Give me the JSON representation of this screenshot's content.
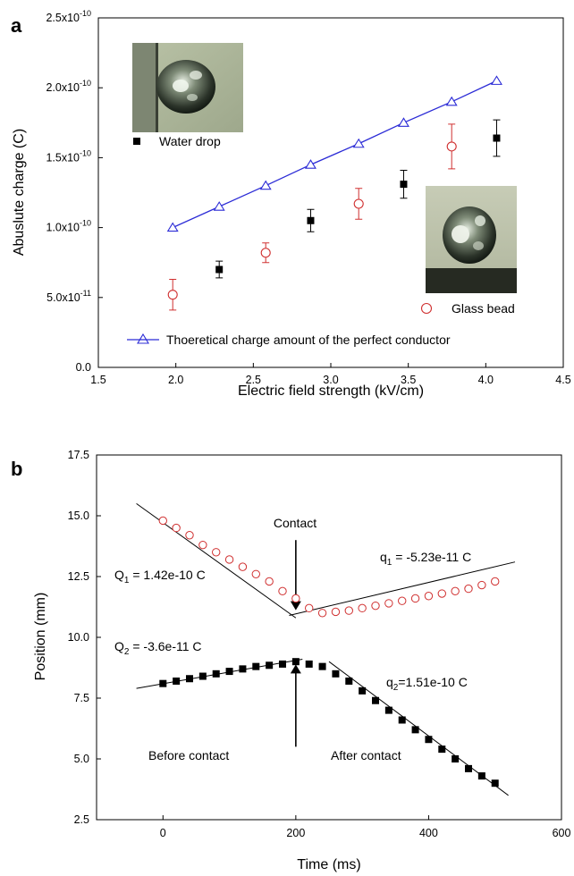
{
  "colors": {
    "theory_line": "#2b2bd6",
    "glass_marker": "#d03030",
    "water_marker": "#000000",
    "fit_line": "#000000"
  },
  "chart_data": [
    {
      "type": "scatter",
      "panel": "a",
      "xlabel": "Electric field strength (kV/cm)",
      "ylabel": "Abuslute charge (C)",
      "xlim": [
        1.5,
        4.5
      ],
      "ylim": [
        0,
        2.5e-10
      ],
      "x_ticks": [
        1.5,
        2.0,
        2.5,
        3.0,
        3.5,
        4.0,
        4.5
      ],
      "x_tick_labels": [
        "1.5",
        "2.0",
        "2.5",
        "3.0",
        "3.5",
        "4.0",
        "4.5"
      ],
      "y_ticks": [
        0,
        5e-11,
        1e-10,
        1.5e-10,
        2e-10,
        2.5e-10
      ],
      "y_tick_labels": [
        {
          "base": "0.0",
          "exp": ""
        },
        {
          "base": "5.0x10",
          "exp": "-11"
        },
        {
          "base": "1.0x10",
          "exp": "-10"
        },
        {
          "base": "1.5x10",
          "exp": "-10"
        },
        {
          "base": "2.0x10",
          "exp": "-10"
        },
        {
          "base": "2.5x10",
          "exp": "-10"
        }
      ],
      "grid": false,
      "series": [
        {
          "name": "Water drop",
          "marker": "filled-square",
          "x": [
            2.28,
            2.87,
            3.47,
            4.07
          ],
          "y": [
            7e-11,
            1.05e-10,
            1.31e-10,
            1.64e-10
          ],
          "yerr": [
            6e-12,
            8e-12,
            1e-11,
            1.3e-11
          ]
        },
        {
          "name": "Glass bead",
          "marker": "open-circle",
          "x": [
            1.98,
            2.58,
            3.18,
            3.78
          ],
          "y": [
            5.2e-11,
            8.2e-11,
            1.17e-10,
            1.58e-10
          ],
          "yerr": [
            1.1e-11,
            7e-12,
            1.1e-11,
            1.6e-11
          ]
        },
        {
          "name": "Thoeretical charge amount of the perfect conductor",
          "marker": "open-triangle-line",
          "x": [
            1.98,
            2.28,
            2.58,
            2.87,
            3.18,
            3.47,
            3.78,
            4.07
          ],
          "y": [
            1e-10,
            1.15e-10,
            1.3e-10,
            1.45e-10,
            1.6e-10,
            1.75e-10,
            1.9e-10,
            2.05e-10
          ]
        }
      ],
      "legend_placement": "inline labels; theory legend at bottom"
    },
    {
      "type": "scatter",
      "panel": "b",
      "xlabel": "Time (ms)",
      "ylabel": "Position (mm)",
      "xlim": [
        -100,
        600
      ],
      "ylim": [
        2.5,
        17.5
      ],
      "x_ticks": [
        0,
        200,
        400,
        600
      ],
      "x_tick_labels": [
        "0",
        "200",
        "400",
        "600"
      ],
      "y_ticks": [
        2.5,
        5.0,
        7.5,
        10.0,
        12.5,
        15.0,
        17.5
      ],
      "y_tick_labels": [
        "2.5",
        "5.0",
        "7.5",
        "10.0",
        "12.5",
        "15.0",
        "17.5"
      ],
      "grid": false,
      "series": [
        {
          "name": "glass bead",
          "marker": "open-circle",
          "x": [
            0,
            20,
            40,
            60,
            80,
            100,
            120,
            140,
            160,
            180,
            200,
            220,
            240,
            260,
            280,
            300,
            320,
            340,
            360,
            380,
            400,
            420,
            440,
            460,
            480,
            500
          ],
          "y": [
            14.8,
            14.5,
            14.2,
            13.8,
            13.5,
            13.2,
            12.9,
            12.6,
            12.3,
            11.9,
            11.6,
            11.2,
            11.0,
            11.05,
            11.1,
            11.2,
            11.3,
            11.4,
            11.5,
            11.6,
            11.7,
            11.8,
            11.9,
            12.0,
            12.15,
            12.3
          ]
        },
        {
          "name": "water drop",
          "marker": "filled-square",
          "x": [
            0,
            20,
            40,
            60,
            80,
            100,
            120,
            140,
            160,
            180,
            200,
            220,
            240,
            260,
            280,
            300,
            320,
            340,
            360,
            380,
            400,
            420,
            440,
            460,
            480,
            500
          ],
          "y": [
            8.1,
            8.2,
            8.3,
            8.4,
            8.5,
            8.6,
            8.7,
            8.8,
            8.85,
            8.9,
            9.0,
            8.9,
            8.8,
            8.5,
            8.2,
            7.8,
            7.4,
            7.0,
            6.6,
            6.2,
            5.8,
            5.4,
            5.0,
            4.6,
            4.3,
            4.0
          ]
        }
      ],
      "fit_lines": [
        {
          "x": [
            -40,
            200
          ],
          "y": [
            15.5,
            10.8
          ]
        },
        {
          "x": [
            190,
            530
          ],
          "y": [
            10.9,
            13.1
          ]
        },
        {
          "x": [
            -40,
            210
          ],
          "y": [
            7.9,
            9.1
          ]
        },
        {
          "x": [
            250,
            520
          ],
          "y": [
            9.0,
            3.5
          ]
        }
      ],
      "arrows": [
        {
          "from": [
            200,
            14.0
          ],
          "to": [
            200,
            11.3
          ]
        },
        {
          "from": [
            200,
            5.5
          ],
          "to": [
            200,
            8.7
          ]
        }
      ]
    }
  ],
  "panel_a": {
    "letter": "a",
    "water_label": "Water drop",
    "glass_label": "Glass bead",
    "theory_label": "Thoeretical charge amount of the perfect conductor"
  },
  "panel_b": {
    "letter": "b",
    "contact": "Contact",
    "before": "Before contact",
    "after": "After contact",
    "Q1": {
      "sym": "Q",
      "sub": "1",
      "val": " = 1.42e-10 C"
    },
    "q1": {
      "sym": "q",
      "sub": "1",
      "val": " = -5.23e-11 C"
    },
    "Q2": {
      "sym": "Q",
      "sub": "2",
      "val": " = -3.6e-11 C"
    },
    "q2": {
      "sym": "q",
      "sub": "2",
      "val": "=1.51e-10 C"
    }
  }
}
